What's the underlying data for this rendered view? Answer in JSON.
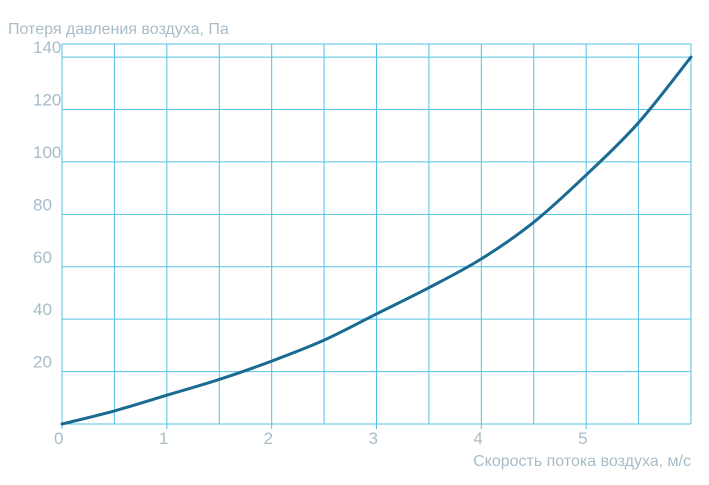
{
  "colors": {
    "grid": "#55c0e6",
    "curve": "#1a6a91",
    "text": "#a7bcc8"
  },
  "chart_data": {
    "type": "line",
    "title": "",
    "ylabel": "Потеря давления воздуха, Па",
    "xlabel": "Скорость потока воздуха, м/с",
    "xlim": [
      0,
      6
    ],
    "ylim": [
      0,
      145
    ],
    "x_grid_step": 0.5,
    "y_grid_step": 20,
    "grid": true,
    "x_ticks": [
      {
        "value": 0,
        "label": "0"
      },
      {
        "value": 1,
        "label": "1"
      },
      {
        "value": 2,
        "label": "2"
      },
      {
        "value": 3,
        "label": "3"
      },
      {
        "value": 4,
        "label": "4"
      },
      {
        "value": 5,
        "label": "5"
      }
    ],
    "y_ticks": [
      {
        "value": 20,
        "label": "20"
      },
      {
        "value": 40,
        "label": "40"
      },
      {
        "value": 60,
        "label": "60"
      },
      {
        "value": 80,
        "label": "80"
      },
      {
        "value": 100,
        "label": "100"
      },
      {
        "value": 120,
        "label": "120"
      },
      {
        "value": 140,
        "label": "140"
      }
    ],
    "series": [
      {
        "x": [
          0,
          0.5,
          1.0,
          1.5,
          2.0,
          2.5,
          3.0,
          3.5,
          4.0,
          4.5,
          5.0,
          5.5,
          6.0
        ],
        "y": [
          0,
          5,
          11,
          17,
          24,
          32,
          42,
          52,
          63,
          77,
          95,
          115,
          140
        ]
      }
    ]
  }
}
